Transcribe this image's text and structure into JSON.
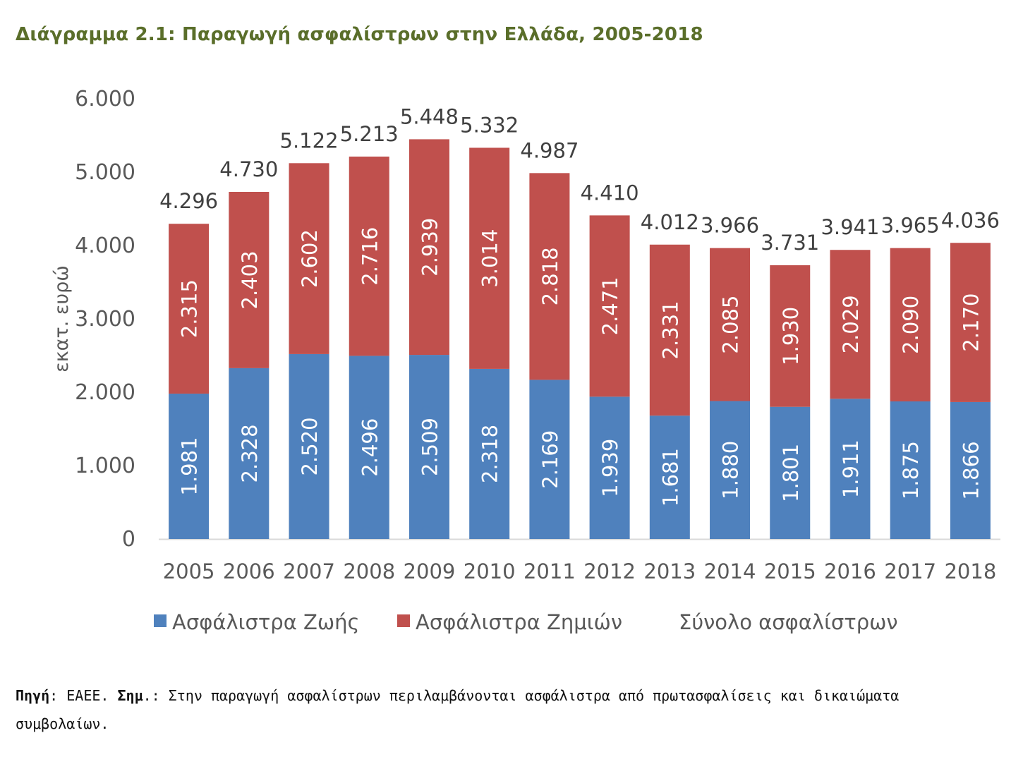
{
  "title": "Διάγραμμα 2.1: Παραγωγή ασφαλίστρων στην Ελλάδα, 2005-2018",
  "note": {
    "source_label": "Πηγή",
    "source_text": ": ΕΑΕΕ.",
    "remark_label": "Σημ",
    "remark_text": ".: Στην παραγωγή ασφαλίστρων περιλαμβάνονται ασφάλιστρα από πρωτασφαλίσεις και δικαιώματα συμβολαίων."
  },
  "colors": {
    "life": "#4f81bd",
    "nonlife": "#c0504d",
    "axis_text": "#595959",
    "title": "#5a6e2a"
  },
  "chart_data": {
    "type": "bar",
    "stacked": true,
    "title": "",
    "ylabel": "εκατ. ευρώ",
    "xlabel": "",
    "ylim": [
      0,
      6000
    ],
    "yticks": [
      0,
      1000,
      2000,
      3000,
      4000,
      5000,
      6000
    ],
    "ytick_labels": [
      "0",
      "1.000",
      "2.000",
      "3.000",
      "4.000",
      "5.000",
      "6.000"
    ],
    "grid": false,
    "legend_position": "bottom",
    "categories": [
      "2005",
      "2006",
      "2007",
      "2008",
      "2009",
      "2010",
      "2011",
      "2012",
      "2013",
      "2014",
      "2015",
      "2016",
      "2017",
      "2018"
    ],
    "series": [
      {
        "name": "Ασφάλιστρα Ζωής",
        "values": [
          1981,
          2328,
          2520,
          2496,
          2509,
          2318,
          2169,
          1939,
          1681,
          1880,
          1801,
          1911,
          1875,
          1866
        ],
        "labels": [
          "1.981",
          "2.328",
          "2.520",
          "2.496",
          "2.509",
          "2.318",
          "2.169",
          "1.939",
          "1.681",
          "1.880",
          "1.801",
          "1.911",
          "1.875",
          "1.866"
        ]
      },
      {
        "name": "Ασφάλιστρα Ζημιών",
        "values": [
          2315,
          2403,
          2602,
          2716,
          2939,
          3014,
          2818,
          2471,
          2331,
          2085,
          1930,
          2029,
          2090,
          2170
        ],
        "labels": [
          "2.315",
          "2.403",
          "2.602",
          "2.716",
          "2.939",
          "3.014",
          "2.818",
          "2.471",
          "2.331",
          "2.085",
          "1.930",
          "2.029",
          "2.090",
          "2.170"
        ]
      }
    ],
    "totals": {
      "name": "Σύνολο ασφαλίστρων",
      "values": [
        4296,
        4730,
        5122,
        5213,
        5448,
        5332,
        4987,
        4410,
        4012,
        3966,
        3731,
        3941,
        3965,
        4036
      ],
      "labels": [
        "4.296",
        "4.730",
        "5.122",
        "5.213",
        "5.448",
        "5.332",
        "4.987",
        "4.410",
        "4.012",
        "3.966",
        "3.731",
        "3.941",
        "3.965",
        "4.036"
      ]
    }
  }
}
